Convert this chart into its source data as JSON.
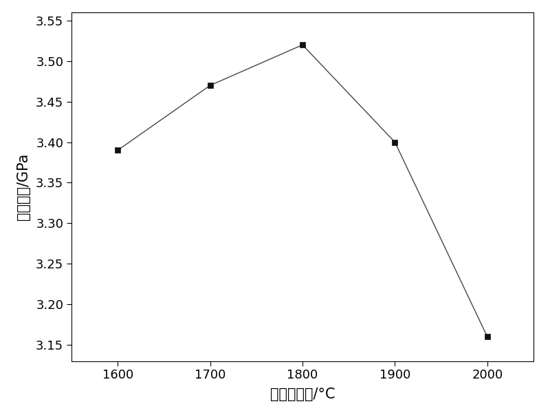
{
  "x": [
    1600,
    1700,
    1800,
    1900,
    2000
  ],
  "y": [
    3.39,
    3.47,
    3.52,
    3.4,
    3.16
  ],
  "xlabel": "热处理温度/°C",
  "ylabel": "抗拉强度/GPa",
  "xlim": [
    1550,
    2050
  ],
  "ylim": [
    3.13,
    3.56
  ],
  "yticks": [
    3.15,
    3.2,
    3.25,
    3.3,
    3.35,
    3.4,
    3.45,
    3.5,
    3.55
  ],
  "xticks": [
    1600,
    1700,
    1800,
    1900,
    2000
  ],
  "line_color": "#444444",
  "marker_color": "#111111",
  "marker": "s",
  "marker_size": 6,
  "line_width": 1.0,
  "background_color": "#ffffff",
  "xlabel_fontsize": 15,
  "ylabel_fontsize": 15,
  "tick_fontsize": 13
}
